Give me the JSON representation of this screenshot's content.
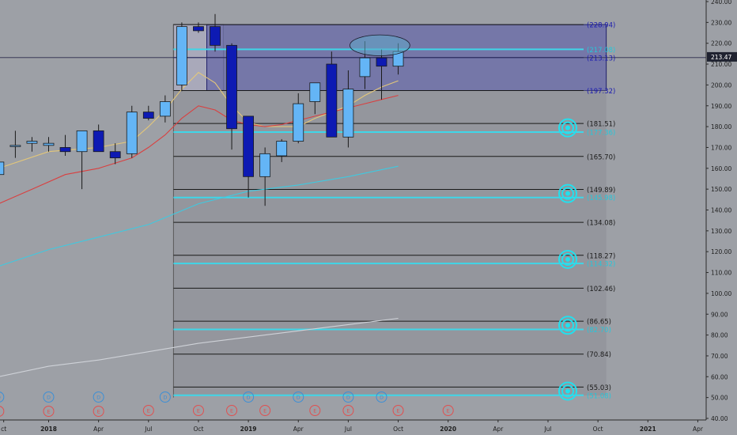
{
  "chart_data": {
    "type": "candlestick",
    "timeframe_note": "monthly candles",
    "y_axis": {
      "min": 40,
      "max": 240,
      "ticks": [
        "240.00",
        "230.00",
        "220.00",
        "210.00",
        "200.00",
        "190.00",
        "180.00",
        "170.00",
        "160.00",
        "150.00",
        "140.00",
        "130.00",
        "120.00",
        "110.00",
        "100.00",
        "90.00",
        "80.00",
        "70.00",
        "60.00",
        "50.00",
        "40.00"
      ],
      "tick_values": [
        240,
        230,
        220,
        210,
        200,
        190,
        180,
        170,
        160,
        150,
        140,
        130,
        120,
        110,
        100,
        90,
        80,
        70,
        60,
        50,
        40
      ],
      "current_price_label": "213.47",
      "current_price": 213.47
    },
    "x_axis": {
      "labels": [
        "ct",
        "2018",
        "Apr",
        "Jul",
        "Oct",
        "2019",
        "Apr",
        "Jul",
        "Oct",
        "2020",
        "Apr",
        "Jul",
        "Oct",
        "2021",
        "Apr"
      ],
      "label_month_index": [
        -2.7,
        0,
        3,
        6,
        9,
        12,
        15,
        18,
        21,
        24,
        27,
        30,
        33,
        36,
        39
      ]
    },
    "candles": [
      {
        "m": -3,
        "o": 157,
        "h": 164,
        "l": 155,
        "c": 163
      },
      {
        "m": -2,
        "o": 171,
        "h": 178,
        "l": 165,
        "c": 171
      },
      {
        "m": -1,
        "o": 172,
        "h": 175,
        "l": 168,
        "c": 173
      },
      {
        "m": 0,
        "o": 171,
        "h": 175,
        "l": 168,
        "c": 172
      },
      {
        "m": 1,
        "o": 170,
        "h": 176,
        "l": 166,
        "c": 168
      },
      {
        "m": 2,
        "o": 168,
        "h": 178,
        "l": 150,
        "c": 178
      },
      {
        "m": 3,
        "o": 178,
        "h": 181,
        "l": 168,
        "c": 168
      },
      {
        "m": 4,
        "o": 168,
        "h": 172,
        "l": 162,
        "c": 165
      },
      {
        "m": 5,
        "o": 167,
        "h": 190,
        "l": 165,
        "c": 187
      },
      {
        "m": 6,
        "o": 187,
        "h": 190,
        "l": 183,
        "c": 184
      },
      {
        "m": 7,
        "o": 185,
        "h": 195,
        "l": 182,
        "c": 192
      },
      {
        "m": 8,
        "o": 200,
        "h": 230,
        "l": 197,
        "c": 228
      },
      {
        "m": 9,
        "o": 228,
        "h": 230,
        "l": 225,
        "c": 226
      },
      {
        "m": 10,
        "o": 228,
        "h": 234,
        "l": 216,
        "c": 219
      },
      {
        "m": 11,
        "o": 219,
        "h": 220,
        "l": 169,
        "c": 179
      },
      {
        "m": 12,
        "o": 185,
        "h": 185,
        "l": 146,
        "c": 156
      },
      {
        "m": 13,
        "o": 156,
        "h": 170,
        "l": 142,
        "c": 167
      },
      {
        "m": 14,
        "o": 166,
        "h": 174,
        "l": 163,
        "c": 173
      },
      {
        "m": 15,
        "o": 173,
        "h": 196,
        "l": 172,
        "c": 191
      },
      {
        "m": 16,
        "o": 192,
        "h": 200,
        "l": 186,
        "c": 201
      },
      {
        "m": 17,
        "o": 210,
        "h": 216,
        "l": 175,
        "c": 175
      },
      {
        "m": 18,
        "o": 175,
        "h": 207,
        "l": 170,
        "c": 198
      },
      {
        "m": 19,
        "o": 204,
        "h": 221,
        "l": 198,
        "c": 213
      },
      {
        "m": 20,
        "o": 213,
        "h": 217,
        "l": 193,
        "c": 209
      },
      {
        "m": 21,
        "o": 209,
        "h": 220,
        "l": 205,
        "c": 216
      }
    ],
    "moving_averages": [
      {
        "name": "",
        "color": "#e3c77a",
        "points": [
          [
            -3,
            160
          ],
          [
            0,
            168
          ],
          [
            3,
            170
          ],
          [
            5,
            173
          ],
          [
            6,
            180
          ],
          [
            7,
            188
          ],
          [
            8,
            198
          ],
          [
            9,
            206
          ],
          [
            10,
            201
          ],
          [
            11,
            190
          ],
          [
            12,
            182
          ],
          [
            13,
            180
          ],
          [
            14,
            180
          ],
          [
            15,
            180
          ],
          [
            16,
            184
          ],
          [
            17,
            187
          ],
          [
            18,
            190
          ],
          [
            19,
            195
          ],
          [
            20,
            199
          ],
          [
            21,
            202
          ]
        ]
      },
      {
        "name": "",
        "color": "#d94040",
        "points": [
          [
            -3,
            143
          ],
          [
            -1,
            150
          ],
          [
            1,
            157
          ],
          [
            3,
            160
          ],
          [
            5,
            165
          ],
          [
            6,
            170
          ],
          [
            7,
            176
          ],
          [
            8,
            184
          ],
          [
            9,
            190
          ],
          [
            10,
            188
          ],
          [
            11,
            183
          ],
          [
            12,
            181
          ],
          [
            13,
            180
          ],
          [
            14,
            181
          ],
          [
            15,
            183
          ],
          [
            16,
            185
          ],
          [
            17,
            187
          ],
          [
            18,
            189
          ],
          [
            19,
            191
          ],
          [
            20,
            193
          ],
          [
            21,
            195
          ]
        ]
      },
      {
        "name": "",
        "color": "#3fc9e0",
        "points": [
          [
            -3,
            113
          ],
          [
            0,
            121
          ],
          [
            3,
            127
          ],
          [
            6,
            133
          ],
          [
            9,
            143
          ],
          [
            12,
            149
          ],
          [
            15,
            152
          ],
          [
            18,
            156
          ],
          [
            21,
            161
          ]
        ]
      },
      {
        "name": "",
        "color": "#cfd2d8",
        "points": [
          [
            -3,
            60
          ],
          [
            0,
            65
          ],
          [
            3,
            68
          ],
          [
            6,
            72
          ],
          [
            9,
            76
          ],
          [
            12,
            79
          ],
          [
            15,
            82
          ],
          [
            18,
            85
          ],
          [
            21,
            88
          ]
        ]
      }
    ],
    "zones": [
      {
        "kind": "box_outline",
        "from_month": 8,
        "to_month": 10,
        "top": 229,
        "bottom": 197.3
      },
      {
        "kind": "purple_box",
        "from_month": 10,
        "to_month": 33,
        "top": 228.94,
        "bottom": 197.32
      },
      {
        "kind": "gray_area",
        "from_month": 8,
        "to_month": 33,
        "top": 197.32,
        "bottom": 51
      }
    ],
    "levels": [
      {
        "price": 228.94,
        "label": "(228.94)",
        "color": "#1a1ab0",
        "style": "black"
      },
      {
        "price": 217.08,
        "label": "(217.08)",
        "color": "#26c6da",
        "style": "cyan"
      },
      {
        "price": 213.13,
        "label": "(213.13)",
        "color": "#1a1ab0",
        "style": "navy"
      },
      {
        "price": 197.32,
        "label": "(197.32)",
        "color": "#1a1ab0",
        "style": "black"
      },
      {
        "price": 181.51,
        "label": "(181.51)",
        "color": "#1a1a1a",
        "style": "black"
      },
      {
        "price": 177.36,
        "label": "(177.36)",
        "color": "#26c6da",
        "style": "cyan"
      },
      {
        "price": 165.7,
        "label": "(165.70)",
        "color": "#1a1a1a",
        "style": "black"
      },
      {
        "price": 149.89,
        "label": "(149.89)",
        "color": "#1a1a1a",
        "style": "black"
      },
      {
        "price": 145.98,
        "label": "(145.98)",
        "color": "#26c6da",
        "style": "cyan"
      },
      {
        "price": 134.08,
        "label": "(134.08)",
        "color": "#1a1a1a",
        "style": "black"
      },
      {
        "price": 118.27,
        "label": "(118.27)",
        "color": "#1a1a1a",
        "style": "black"
      },
      {
        "price": 114.32,
        "label": "(114.32)",
        "color": "#26c6da",
        "style": "cyan"
      },
      {
        "price": 102.46,
        "label": "(102.46)",
        "color": "#1a1a1a",
        "style": "black"
      },
      {
        "price": 86.65,
        "label": "(86.65)",
        "color": "#1a1a1a",
        "style": "black"
      },
      {
        "price": 82.7,
        "label": "(82.70)",
        "color": "#26c6da",
        "style": "cyan"
      },
      {
        "price": 70.84,
        "label": "(70.84)",
        "color": "#1a1a1a",
        "style": "black"
      },
      {
        "price": 55.03,
        "label": "(55.03)",
        "color": "#1a1a1a",
        "style": "black"
      },
      {
        "price": 51.08,
        "label": "(51.08)",
        "color": "#26c6da",
        "style": "cyan"
      }
    ],
    "target_markers": [
      179.4,
      147.9,
      116.3,
      84.7,
      53.1
    ],
    "ellipse_annotation": {
      "center_month": 19.9,
      "center_price": 219,
      "rx_months": 1.8,
      "ry_price": 5
    },
    "event_markers": {
      "dividend_label": "D",
      "earnings_label": "E",
      "dividends": [
        -3,
        0,
        3,
        7,
        12,
        15,
        18,
        20
      ],
      "earnings": [
        -3,
        0,
        3,
        6,
        9,
        11,
        13,
        16,
        18,
        21,
        24
      ]
    },
    "colors": {
      "background": "#9da0a6",
      "bull_body": "#64b5f6",
      "bear_body": "#0d1ab3",
      "purple_box": "#6f70a8",
      "gray_area": "#8c8e96",
      "dividend": "#3d8fd6",
      "earnings": "#e05050",
      "axis_panel": "#9da0a6"
    }
  }
}
